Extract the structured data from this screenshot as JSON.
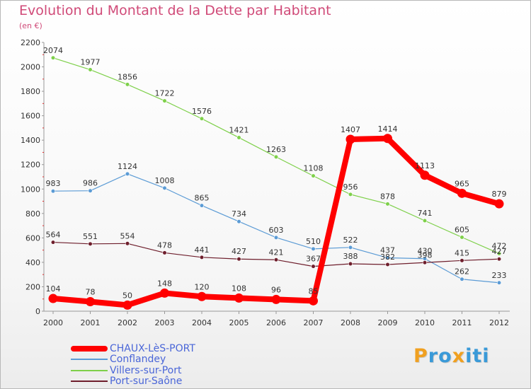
{
  "header": {
    "title": "Evolution du Montant de la Dette par Habitant",
    "subtitle": "(en €)"
  },
  "logo": {
    "letters": [
      "P",
      "r",
      "o",
      "x",
      "i",
      "t",
      "i"
    ],
    "colors": [
      "#f0a020",
      "#3a9ad8",
      "#3a9ad8",
      "#f0a020",
      "#3a9ad8",
      "#3a9ad8",
      "#3a9ad8"
    ]
  },
  "chart_data": {
    "type": "line",
    "x": [
      "2000",
      "2001",
      "2002",
      "2003",
      "2004",
      "2005",
      "2006",
      "2007",
      "2008",
      "2009",
      "2010",
      "2011",
      "2012"
    ],
    "ylim": [
      0,
      2200
    ],
    "yticks": [
      0,
      200,
      400,
      600,
      800,
      1000,
      1200,
      1400,
      1600,
      1800,
      2000,
      2200
    ],
    "grid": false,
    "legend_position": "bottom-left",
    "series": [
      {
        "name": "Villers-sur-Port",
        "color": "#7ed04a",
        "values": [
          2074,
          1977,
          1856,
          1722,
          1576,
          1421,
          1263,
          1108,
          956,
          878,
          741,
          605,
          472
        ]
      },
      {
        "name": "Conflandey",
        "color": "#5b9bd5",
        "values": [
          983,
          986,
          1124,
          1008,
          865,
          734,
          603,
          510,
          522,
          437,
          430,
          262,
          233
        ]
      },
      {
        "name": "Port-sur-Saône",
        "color": "#6e1e2c",
        "values": [
          564,
          551,
          554,
          478,
          441,
          427,
          421,
          367,
          388,
          382,
          398,
          415,
          427
        ]
      },
      {
        "name": "CHAUX-LèS-PORT",
        "color": "#ff0000",
        "values": [
          104,
          78,
          50,
          148,
          120,
          108,
          96,
          85,
          1407,
          1414,
          1113,
          965,
          879
        ]
      }
    ],
    "legend_order": [
      "CHAUX-LèS-PORT",
      "Conflandey",
      "Villers-sur-Port",
      "Port-sur-Saône"
    ]
  }
}
